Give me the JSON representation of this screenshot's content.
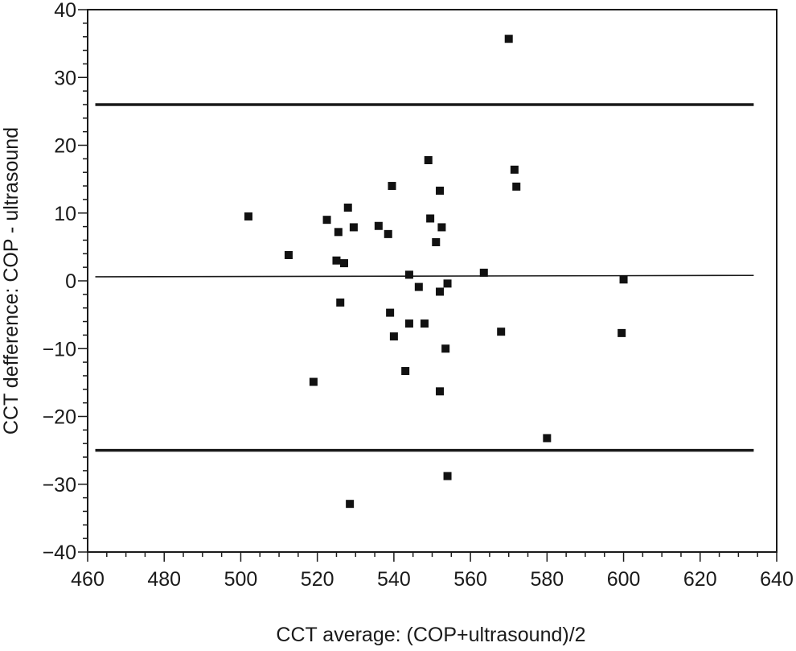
{
  "chart_data": {
    "type": "scatter",
    "xlabel": "CCT average: (COP+ultrasound)/2",
    "ylabel": "CCT defference: COP - ultrasound",
    "xlim": [
      460,
      640
    ],
    "ylim": [
      -40,
      40
    ],
    "xticks": [
      460,
      480,
      500,
      520,
      540,
      560,
      580,
      600,
      620,
      640
    ],
    "yticks": [
      -40,
      -30,
      -20,
      -10,
      0,
      10,
      20,
      30,
      40
    ],
    "x_minor_step": 5,
    "y_minor_step": 2,
    "grid": false,
    "lines": [
      {
        "kind": "upper-limit-of-agreement",
        "y": 26,
        "x_start": 462,
        "x_end": 634,
        "weight": "thick"
      },
      {
        "kind": "mean-difference",
        "y_start": 0.6,
        "y_end": 0.8,
        "x_start": 462,
        "x_end": 634,
        "weight": "thin"
      },
      {
        "kind": "lower-limit-of-agreement",
        "y": -25,
        "x_start": 462,
        "x_end": 634,
        "weight": "thick"
      }
    ],
    "points": [
      {
        "x": 570,
        "y": 35.7
      },
      {
        "x": 549,
        "y": 17.8
      },
      {
        "x": 571.5,
        "y": 16.4
      },
      {
        "x": 539.5,
        "y": 14
      },
      {
        "x": 572,
        "y": 13.9
      },
      {
        "x": 552,
        "y": 13.3
      },
      {
        "x": 528,
        "y": 10.8
      },
      {
        "x": 502,
        "y": 9.5
      },
      {
        "x": 549.5,
        "y": 9.2
      },
      {
        "x": 522.5,
        "y": 9
      },
      {
        "x": 536,
        "y": 8.1
      },
      {
        "x": 529.5,
        "y": 7.9
      },
      {
        "x": 552.5,
        "y": 7.9
      },
      {
        "x": 525.5,
        "y": 7.2
      },
      {
        "x": 538.5,
        "y": 6.9
      },
      {
        "x": 551,
        "y": 5.7
      },
      {
        "x": 512.5,
        "y": 3.8
      },
      {
        "x": 525,
        "y": 3
      },
      {
        "x": 527,
        "y": 2.6
      },
      {
        "x": 563.5,
        "y": 1.2
      },
      {
        "x": 544,
        "y": 0.9
      },
      {
        "x": 600,
        "y": 0.2
      },
      {
        "x": 554,
        "y": -0.4
      },
      {
        "x": 546.5,
        "y": -0.9
      },
      {
        "x": 552,
        "y": -1.6
      },
      {
        "x": 526,
        "y": -3.2
      },
      {
        "x": 539,
        "y": -4.7
      },
      {
        "x": 544,
        "y": -6.3
      },
      {
        "x": 548,
        "y": -6.3
      },
      {
        "x": 568,
        "y": -7.5
      },
      {
        "x": 599.5,
        "y": -7.7
      },
      {
        "x": 540,
        "y": -8.2
      },
      {
        "x": 553.5,
        "y": -10
      },
      {
        "x": 543,
        "y": -13.3
      },
      {
        "x": 519,
        "y": -14.9
      },
      {
        "x": 552,
        "y": -16.3
      },
      {
        "x": 580,
        "y": -23.2
      },
      {
        "x": 554,
        "y": -28.8
      },
      {
        "x": 528.5,
        "y": -32.9
      }
    ]
  }
}
